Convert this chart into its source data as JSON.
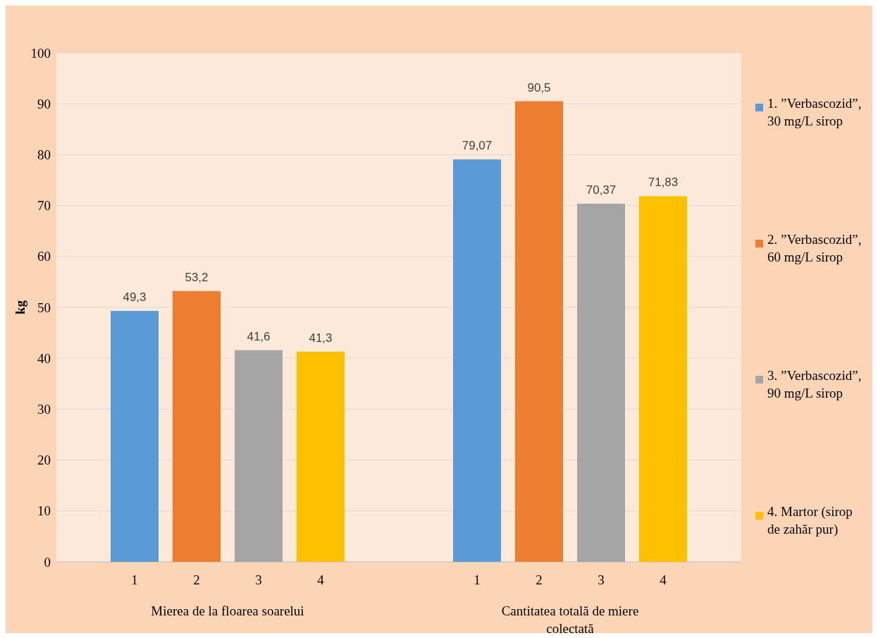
{
  "chart_data": {
    "type": "bar",
    "ylabel": "kg",
    "categories": [
      "1",
      "2",
      "3",
      "4",
      "1",
      "2",
      "3",
      "4"
    ],
    "series": [
      {
        "name": "1. ”Verbascozid”, 30 mg/L sirop",
        "color": "#5b9bd5",
        "values": [
          49.3,
          null,
          null,
          null,
          79.07,
          null,
          null,
          null
        ],
        "value_labels": [
          "49,3",
          null,
          null,
          null,
          "79,07",
          null,
          null,
          null
        ]
      },
      {
        "name": "2. ”Verbascozid”, 60 mg/L sirop",
        "color": "#ed7d31",
        "values": [
          null,
          53.2,
          null,
          null,
          null,
          90.5,
          null,
          null
        ],
        "value_labels": [
          null,
          "53,2",
          null,
          null,
          null,
          "90,5",
          null,
          null
        ]
      },
      {
        "name": "3. ”Verbascozid”, 90 mg/L sirop",
        "color": "#a5a5a5",
        "values": [
          null,
          null,
          41.6,
          null,
          null,
          null,
          70.37,
          null
        ],
        "value_labels": [
          null,
          null,
          "41,6",
          null,
          null,
          null,
          "70,37",
          null
        ]
      },
      {
        "name": "4. Martor (sirop de zahăr pur)",
        "color": "#ffc000",
        "values": [
          null,
          null,
          null,
          41.3,
          null,
          null,
          null,
          71.83
        ],
        "value_labels": [
          null,
          null,
          null,
          "41,3",
          null,
          null,
          null,
          "71,83"
        ]
      }
    ],
    "ylim": [
      0,
      100
    ],
    "yticks": [
      0,
      10,
      20,
      30,
      40,
      50,
      60,
      70,
      80,
      90,
      100
    ],
    "grid": "y",
    "legend": "right",
    "annotations": [
      "Mierea de la floarea soarelui",
      "Cantitatea totală de miere colectată"
    ]
  }
}
